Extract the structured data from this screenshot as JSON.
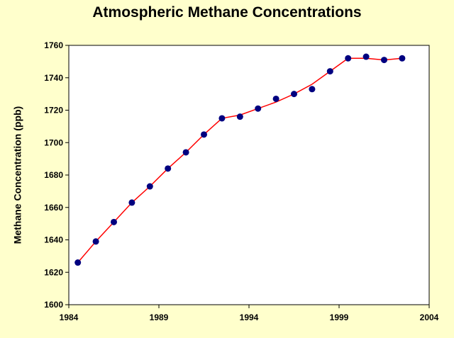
{
  "chart_data": {
    "type": "line",
    "title": "Atmospheric Methane Concentrations",
    "xlabel": "",
    "ylabel": "Methane Concentration (ppb)",
    "xlim": [
      1984,
      2004
    ],
    "ylim": [
      1600,
      1760
    ],
    "x_ticks": [
      1984,
      1989,
      1994,
      1999,
      2004
    ],
    "y_ticks": [
      1600,
      1620,
      1640,
      1660,
      1680,
      1700,
      1720,
      1740,
      1760
    ],
    "grid": false,
    "legend": "none",
    "colors": {
      "background": "#ffffcc",
      "plot_area": "#ffffff",
      "line": "#ff0000",
      "markers": "#000080"
    },
    "series": [
      {
        "x": [
          1984.5,
          1985.5,
          1986.5,
          1987.5,
          1988.5,
          1989.5,
          1990.5,
          1991.5,
          1992.5,
          1993.5,
          1994.5,
          1995.5,
          1996.5,
          1997.5,
          1998.5,
          1999.5,
          2000.5,
          2001.5,
          2002.5
        ],
        "points": [
          1626,
          1639,
          1651,
          1663,
          1673,
          1684,
          1694,
          1705,
          1715,
          1716,
          1721,
          1727,
          1730,
          1733,
          1744,
          1752,
          1753,
          1751,
          1752
        ],
        "fitted_line": [
          1626,
          1639,
          1651,
          1663,
          1673,
          1684,
          1694,
          1705,
          1715,
          1717,
          1721,
          1725,
          1730,
          1736,
          1744,
          1752,
          1752,
          1751,
          1752
        ]
      }
    ]
  }
}
